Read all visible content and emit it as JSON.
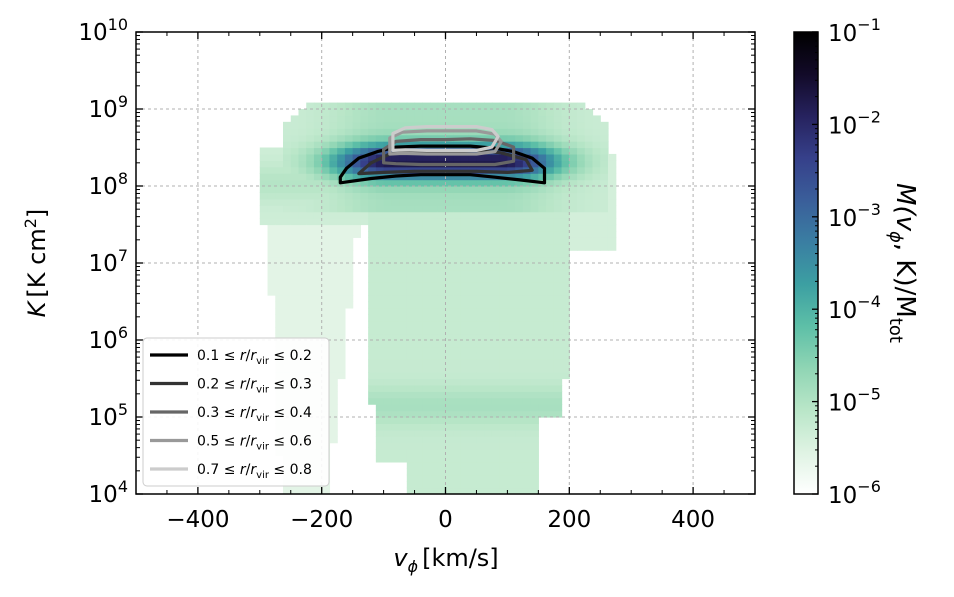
{
  "chart_data": {
    "type": "heatmap",
    "xlabel": "v",
    "xlabel_sub": "ϕ",
    "xlabel_unit": "[km/s]",
    "ylabel": "K",
    "ylabel_unit": "[K cm",
    "ylabel_unit_sup": "2",
    "ylabel_unit_close": "]",
    "xlim": [
      -500,
      500
    ],
    "ylim": [
      10000,
      10000000000
    ],
    "yscale": "log",
    "grid": true,
    "x_ticks": [
      -400,
      -200,
      0,
      200,
      400
    ],
    "x_tick_labels": [
      "−400",
      "−200",
      "0",
      "200",
      "400"
    ],
    "y_tick_exponents": [
      4,
      5,
      6,
      7,
      8,
      9,
      10
    ],
    "y_tick_base": "10",
    "colorbar": {
      "label": "M(v",
      "label_sub": "ϕ",
      "label_mid": ", K)/M",
      "label_sub2": "tot",
      "scale": "log",
      "range": [
        1e-06,
        0.1
      ],
      "tick_exponents": [
        -6,
        -5,
        -4,
        -3,
        -2,
        -1
      ],
      "tick_base": "10",
      "colormap": [
        "#ffffff",
        "#dff3e3",
        "#b9e6c8",
        "#8fd5b4",
        "#5dbfa7",
        "#3c9fa2",
        "#3a7ea2",
        "#3a5e9a",
        "#36408a",
        "#26225e",
        "#120a28",
        "#000000"
      ]
    },
    "legend": {
      "placement": "lower-left",
      "entries": [
        {
          "prefix": "0.1 ≤ ",
          "var": "r",
          "mid": "/",
          "var2": "r",
          "sub": "vir",
          "suffix": " ≤ 0.2",
          "color": "#000000"
        },
        {
          "prefix": "0.2 ≤ ",
          "var": "r",
          "mid": "/",
          "var2": "r",
          "sub": "vir",
          "suffix": " ≤ 0.3",
          "color": "#333333"
        },
        {
          "prefix": "0.3 ≤ ",
          "var": "r",
          "mid": "/",
          "var2": "r",
          "sub": "vir",
          "suffix": " ≤ 0.4",
          "color": "#666666"
        },
        {
          "prefix": "0.5 ≤ ",
          "var": "r",
          "mid": "/",
          "var2": "r",
          "sub": "vir",
          "suffix": " ≤ 0.6",
          "color": "#999999"
        },
        {
          "prefix": "0.7 ≤ ",
          "var": "r",
          "mid": "/",
          "var2": "r",
          "sub": "vir",
          "suffix": " ≤ 0.8",
          "color": "#cccccc"
        }
      ]
    },
    "contours": [
      {
        "color": "#000000",
        "points": [
          [
            -170,
            130000000
          ],
          [
            -160,
            170000000
          ],
          [
            -140,
            230000000
          ],
          [
            -110,
            280000000
          ],
          [
            -80,
            320000000
          ],
          [
            -40,
            330000000
          ],
          [
            0,
            330000000
          ],
          [
            40,
            330000000
          ],
          [
            80,
            310000000
          ],
          [
            110,
            280000000
          ],
          [
            140,
            230000000
          ],
          [
            160,
            170000000
          ],
          [
            160,
            110000000
          ],
          [
            120,
            120000000
          ],
          [
            80,
            130000000
          ],
          [
            40,
            140000000
          ],
          [
            0,
            140000000
          ],
          [
            -40,
            140000000
          ],
          [
            -80,
            135000000
          ],
          [
            -120,
            125000000
          ],
          [
            -170,
            110000000
          ]
        ]
      },
      {
        "color": "#333333",
        "points": [
          [
            -140,
            145000000
          ],
          [
            -120,
            200000000
          ],
          [
            -90,
            260000000
          ],
          [
            -50,
            280000000
          ],
          [
            0,
            280000000
          ],
          [
            50,
            290000000
          ],
          [
            90,
            270000000
          ],
          [
            130,
            220000000
          ],
          [
            140,
            160000000
          ],
          [
            100,
            150000000
          ],
          [
            50,
            155000000
          ],
          [
            0,
            155000000
          ],
          [
            -50,
            155000000
          ],
          [
            -100,
            150000000
          ]
        ]
      },
      {
        "color": "#666666",
        "points": [
          [
            -100,
            200000000
          ],
          [
            -100,
            300000000
          ],
          [
            -80,
            380000000
          ],
          [
            -40,
            400000000
          ],
          [
            0,
            400000000
          ],
          [
            40,
            410000000
          ],
          [
            80,
            390000000
          ],
          [
            110,
            320000000
          ],
          [
            110,
            210000000
          ],
          [
            80,
            190000000
          ],
          [
            40,
            190000000
          ],
          [
            0,
            190000000
          ],
          [
            -40,
            190000000
          ],
          [
            -80,
            195000000
          ]
        ]
      },
      {
        "color": "#999999",
        "points": [
          [
            -90,
            260000000
          ],
          [
            -90,
            420000000
          ],
          [
            -70,
            500000000
          ],
          [
            -30,
            520000000
          ],
          [
            10,
            520000000
          ],
          [
            50,
            520000000
          ],
          [
            80,
            470000000
          ],
          [
            90,
            380000000
          ],
          [
            80,
            280000000
          ],
          [
            50,
            260000000
          ],
          [
            10,
            260000000
          ],
          [
            -30,
            260000000
          ],
          [
            -70,
            265000000
          ]
        ]
      },
      {
        "color": "#cccccc",
        "points": [
          [
            -85,
            290000000
          ],
          [
            -85,
            480000000
          ],
          [
            -65,
            570000000
          ],
          [
            -30,
            590000000
          ],
          [
            10,
            590000000
          ],
          [
            50,
            590000000
          ],
          [
            75,
            540000000
          ],
          [
            85,
            440000000
          ],
          [
            75,
            320000000
          ],
          [
            50,
            290000000
          ],
          [
            10,
            290000000
          ],
          [
            -30,
            290000000
          ],
          [
            -65,
            295000000
          ]
        ]
      }
    ]
  }
}
